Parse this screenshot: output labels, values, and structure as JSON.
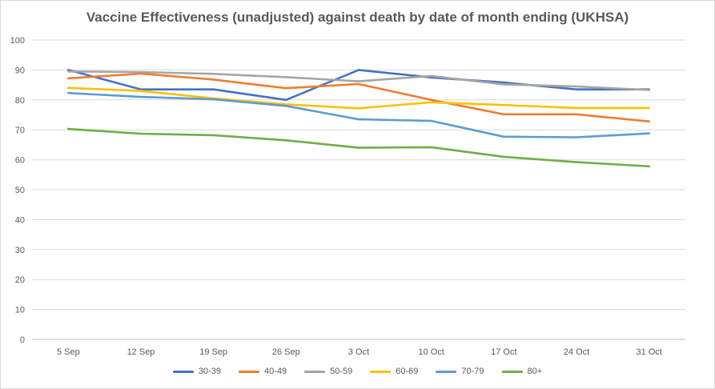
{
  "chart_data": {
    "type": "line",
    "title": "Vaccine Effectiveness (unadjusted) against death by date of month ending (UKHSA)",
    "xlabel": "",
    "ylabel": "",
    "categories": [
      "5 Sep",
      "12 Sep",
      "19 Sep",
      "26 Sep",
      "3 Oct",
      "10 Oct",
      "17 Oct",
      "24 Oct",
      "31 Oct"
    ],
    "ylim": [
      0,
      100
    ],
    "yticks": [
      "0",
      "10",
      "20",
      "30",
      "40",
      "50",
      "60",
      "70",
      "80",
      "90",
      "100"
    ],
    "grid": true,
    "legend_position": "bottom",
    "series": [
      {
        "name": "30-39",
        "color": "#4472c4",
        "values": [
          90,
          83.5,
          83.5,
          80,
          90,
          87.5,
          85.8,
          83.5,
          83.5
        ]
      },
      {
        "name": "40-49",
        "color": "#ed7d31",
        "values": [
          87.2,
          88.8,
          86.8,
          83.9,
          85.3,
          80,
          75.2,
          75.2,
          72.8
        ]
      },
      {
        "name": "50-59",
        "color": "#a5a5a5",
        "values": [
          89.5,
          89.3,
          88.7,
          87.6,
          86.2,
          88,
          85.2,
          84.5,
          83.3
        ]
      },
      {
        "name": "60-69",
        "color": "#ffc000",
        "values": [
          84,
          83,
          80.5,
          78.5,
          77.2,
          79.2,
          78.3,
          77.3,
          77.3
        ]
      },
      {
        "name": "70-79",
        "color": "#5b9bd5",
        "values": [
          82.3,
          81,
          80.2,
          78,
          73.5,
          73,
          67.7,
          67.5,
          68.8
        ]
      },
      {
        "name": "80+",
        "color": "#70ad47",
        "values": [
          70.3,
          68.7,
          68.2,
          66.5,
          64,
          64.2,
          61,
          59.2,
          57.8
        ]
      }
    ]
  }
}
